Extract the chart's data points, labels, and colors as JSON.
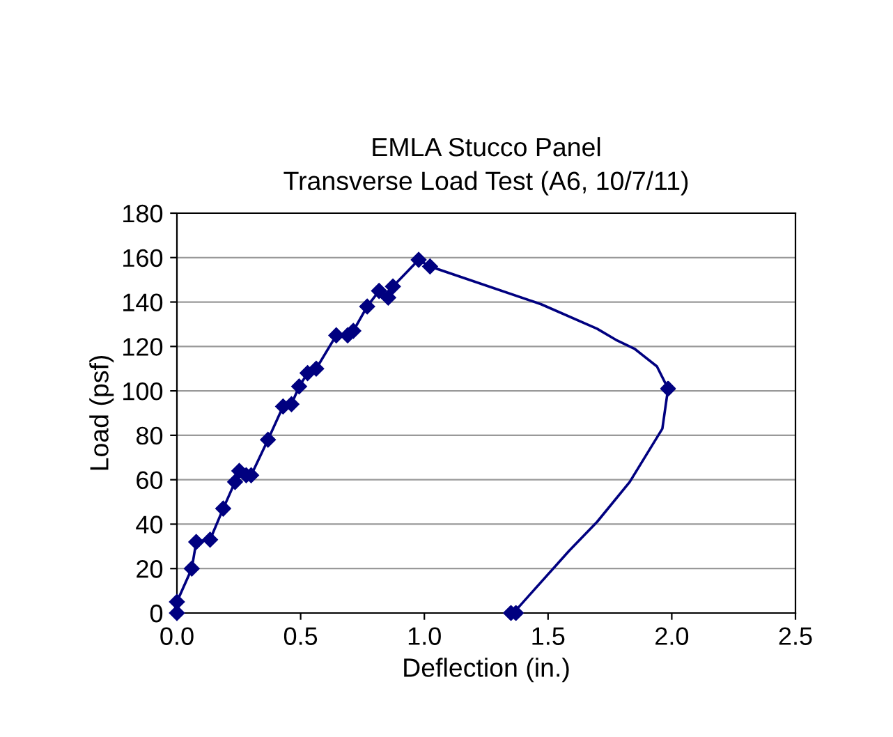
{
  "chart_data": {
    "type": "line",
    "title": "EMLA Stucco Panel\nTransverse Load Test (A6, 10/7/11)",
    "xlabel": "Deflection (in.)",
    "ylabel": "Load (psf)",
    "series": [
      {
        "color": "#000080",
        "marker": "diamond",
        "x": [
          0,
          0,
          0.06,
          0.078,
          0.134,
          0.187,
          0.235,
          0.252,
          0.28,
          0.3,
          0.368,
          0.429,
          0.463,
          0.494,
          0.528,
          0.563,
          0.644,
          0.69,
          0.713,
          0.769,
          0.817,
          0.854,
          0.873,
          0.977,
          1.023
        ],
        "values": [
          0,
          5,
          20,
          32,
          33,
          47,
          59,
          64,
          62,
          62,
          78,
          93,
          94,
          102,
          108,
          110,
          125,
          125,
          127,
          138,
          145,
          142,
          147,
          159,
          156
        ]
      },
      {
        "color": "#000080",
        "marker": "none",
        "x": [
          1.023,
          1.472,
          1.698,
          1.774,
          1.849,
          1.94,
          1.985,
          1.962,
          1.83,
          1.698,
          1.585,
          1.36
        ],
        "values": [
          156,
          139,
          128,
          123,
          119,
          111,
          101,
          83,
          59,
          41,
          28,
          0
        ]
      },
      {
        "type": "scatter",
        "color": "#000080",
        "marker": "diamond",
        "x": [
          1.985,
          1.35,
          1.37
        ],
        "values": [
          101,
          0,
          0
        ]
      }
    ],
    "xlim": [
      0,
      2.5
    ],
    "xticks": [
      {
        "value": 0,
        "label": "0.0"
      },
      {
        "value": 0.5,
        "label": "0.5"
      },
      {
        "value": 1,
        "label": "1.0"
      },
      {
        "value": 1.5,
        "label": "1.5"
      },
      {
        "value": 2,
        "label": "2.0"
      },
      {
        "value": 2.5,
        "label": "2.5"
      }
    ],
    "ylim": [
      0,
      180
    ],
    "yticks": [
      0,
      20,
      40,
      60,
      80,
      100,
      120,
      140,
      160,
      180
    ],
    "grid": "y"
  }
}
